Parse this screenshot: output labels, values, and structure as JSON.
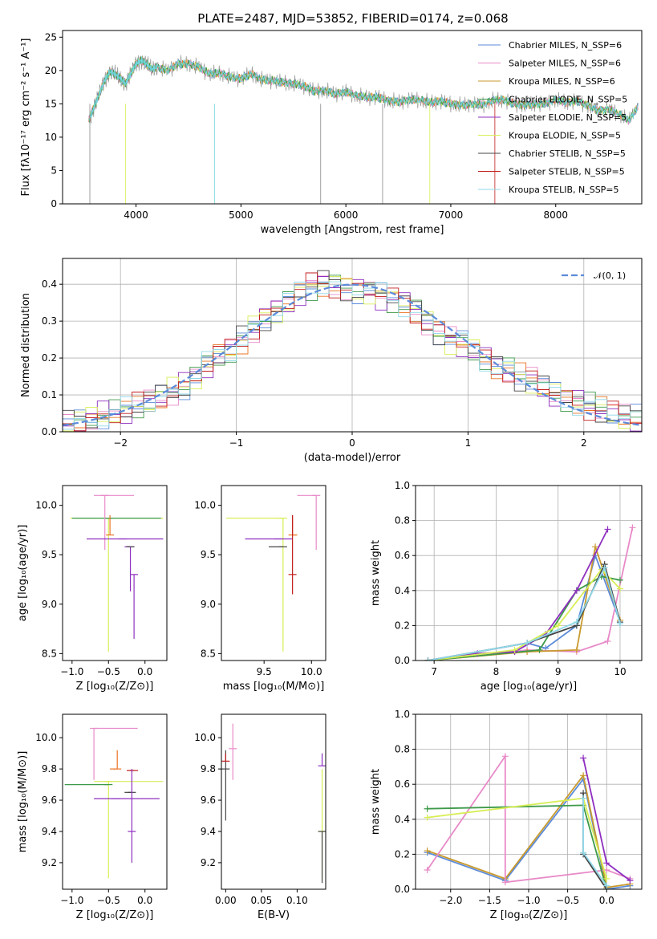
{
  "title": "PLATE=2487, MJD=53852, FIBERID=0174, z=0.068",
  "palette": {
    "chabrier_miles": "#5b8bd9",
    "salpeter_miles": "#e88ac8",
    "kroupa_miles": "#c99a2e",
    "chabrier_elodie": "#3e9a4a",
    "salpeter_elodie": "#8e2fbf",
    "kroupa_elodie": "#d8ee55",
    "chabrier_stelib": "#444444",
    "salpeter_stelib": "#c11c1c",
    "kroupa_stelib": "#8fd8e8",
    "cyan": "#6fd6dc",
    "orange": "#ea7424",
    "gray": "#888888",
    "normal": "#5b8bd9"
  },
  "chart_data": [
    {
      "id": "spectrum",
      "type": "line",
      "xlabel": "wavelength [Angstrom, rest frame]",
      "ylabel": "Flux [fλ10⁻¹⁷ erg cm⁻² s⁻¹ A⁻¹]",
      "xlim": [
        3300,
        8820
      ],
      "ylim": [
        0,
        26
      ],
      "xticks": [
        4000,
        5000,
        6000,
        7000,
        8000
      ],
      "yticks": [
        0,
        5,
        10,
        15,
        20,
        25
      ],
      "legend_position": "top-right",
      "legend": [
        {
          "name": "Chabrier MILES, N_SSP=6",
          "color_key": "chabrier_miles"
        },
        {
          "name": "Salpeter MILES, N_SSP=6",
          "color_key": "salpeter_miles"
        },
        {
          "name": "Kroupa MILES, N_SSP=6",
          "color_key": "kroupa_miles"
        },
        {
          "name": "Chabrier ELODIE, N_SSP=5",
          "color_key": "chabrier_elodie"
        },
        {
          "name": "Salpeter ELODIE, N_SSP=5",
          "color_key": "salpeter_elodie"
        },
        {
          "name": "Kroupa ELODIE, N_SSP=5",
          "color_key": "kroupa_elodie"
        },
        {
          "name": "Chabrier STELIB, N_SSP=5",
          "color_key": "chabrier_stelib"
        },
        {
          "name": "Salpeter STELIB, N_SSP=5",
          "color_key": "salpeter_stelib"
        },
        {
          "name": "Kroupa STELIB, N_SSP=5",
          "color_key": "kroupa_stelib"
        }
      ],
      "data_series": {
        "x": [
          3550,
          3600,
          3650,
          3700,
          3750,
          3800,
          3850,
          3900,
          3950,
          4000,
          4050,
          4100,
          4150,
          4200,
          4300,
          4400,
          4500,
          4600,
          4700,
          4800,
          4900,
          5000,
          5100,
          5200,
          5300,
          5400,
          5500,
          5600,
          5700,
          5800,
          5900,
          6000,
          6100,
          6200,
          6300,
          6400,
          6500,
          6600,
          6700,
          6800,
          6900,
          7000,
          7100,
          7200,
          7300,
          7400,
          7500,
          7600,
          7700,
          7800,
          7900,
          8000,
          8100,
          8200,
          8300,
          8400,
          8500,
          8600,
          8700,
          8790
        ],
        "y": [
          12.5,
          14.5,
          16.5,
          18.5,
          19.8,
          19.5,
          18.8,
          18.0,
          19.5,
          21.0,
          21.5,
          21.0,
          20.2,
          20.5,
          20.0,
          21.0,
          21.0,
          20.5,
          19.5,
          19.6,
          19.0,
          18.8,
          19.5,
          18.6,
          18.5,
          18.2,
          18.0,
          17.7,
          16.9,
          17.0,
          16.5,
          16.8,
          16.2,
          16.0,
          16.0,
          15.5,
          15.3,
          15.6,
          15.6,
          15.2,
          15.4,
          15.0,
          14.8,
          15.0,
          14.8,
          15.5,
          15.6,
          15.0,
          14.8,
          15.0,
          15.0,
          15.6,
          15.2,
          15.4,
          14.8,
          14.0,
          14.2,
          13.5,
          12.5,
          14.8
        ]
      }
    },
    {
      "id": "residuals",
      "type": "line",
      "xlabel": "(data-model)/error",
      "ylabel": "Normed distribution",
      "xlim": [
        -2.5,
        2.5
      ],
      "ylim": [
        0,
        0.47
      ],
      "xticks": [
        -2,
        -1,
        0,
        1,
        2
      ],
      "yticks": [
        0.0,
        0.1,
        0.2,
        0.3,
        0.4
      ],
      "grid": true,
      "legend_position": "top-right",
      "legend": [
        {
          "name": "𝒩(0, 1)",
          "color_key": "normal"
        }
      ],
      "bin_centers": [
        -2.45,
        -2.35,
        -2.25,
        -2.15,
        -2.05,
        -1.95,
        -1.85,
        -1.75,
        -1.65,
        -1.55,
        -1.45,
        -1.35,
        -1.25,
        -1.15,
        -1.05,
        -0.95,
        -0.85,
        -0.75,
        -0.65,
        -0.55,
        -0.45,
        -0.35,
        -0.25,
        -0.15,
        -0.05,
        0.05,
        0.15,
        0.25,
        0.35,
        0.45,
        0.55,
        0.65,
        0.75,
        0.85,
        0.95,
        1.05,
        1.15,
        1.25,
        1.35,
        1.45,
        1.55,
        1.65,
        1.75,
        1.85,
        1.95,
        2.05,
        2.15,
        2.25,
        2.35,
        2.45
      ],
      "hist_mean": [
        0.02,
        0.025,
        0.035,
        0.045,
        0.05,
        0.055,
        0.07,
        0.08,
        0.095,
        0.11,
        0.125,
        0.15,
        0.18,
        0.205,
        0.22,
        0.25,
        0.28,
        0.31,
        0.33,
        0.35,
        0.375,
        0.395,
        0.405,
        0.4,
        0.39,
        0.385,
        0.38,
        0.37,
        0.36,
        0.35,
        0.33,
        0.3,
        0.27,
        0.25,
        0.24,
        0.22,
        0.2,
        0.18,
        0.17,
        0.15,
        0.14,
        0.12,
        0.1,
        0.09,
        0.08,
        0.07,
        0.06,
        0.05,
        0.04,
        0.035
      ]
    },
    {
      "id": "age-vs-z",
      "type": "scatter",
      "xlabel": "Z [log₁₀(Z/Z⊙)]",
      "ylabel": "age  [log₁₀(age/yr)]",
      "xlim": [
        -1.13,
        0.3
      ],
      "ylim": [
        8.43,
        10.2
      ],
      "xticks": [
        -1.0,
        -0.5,
        0.0
      ],
      "yticks": [
        8.5,
        9.0,
        9.5,
        10.0
      ],
      "points": [
        {
          "x": -0.5,
          "y": 9.87,
          "xerr": [
            0.52,
            0.75
          ],
          "yerr": [
            1.35,
            0.0
          ],
          "color_key": "kroupa_elodie"
        },
        {
          "x": -0.5,
          "y": 9.87,
          "xerr": [
            0.5,
            0.72
          ],
          "yerr": [
            0.0,
            0.0
          ],
          "color_key": "chabrier_elodie"
        },
        {
          "x": -0.48,
          "y": 9.7,
          "xerr": [
            0.0,
            0.0
          ],
          "yerr": [
            0.0,
            0.2
          ],
          "color_key": "orange"
        },
        {
          "x": -0.55,
          "y": 10.1,
          "xerr": [
            0.15,
            0.4
          ],
          "yerr": [
            0.55,
            0.0
          ],
          "color_key": "salpeter_miles"
        },
        {
          "x": -0.3,
          "y": 9.66,
          "xerr": [
            0.5,
            0.55
          ],
          "yerr": [
            0.0,
            0.0
          ],
          "color_key": "salpeter_elodie"
        },
        {
          "x": -0.2,
          "y": 9.58,
          "xerr": [
            0.08,
            0.0
          ],
          "yerr": [
            0.45,
            0.0
          ],
          "color_key": "salpeter_elodie"
        },
        {
          "x": -0.2,
          "y": 9.58,
          "xerr": [
            0.05,
            0.0
          ],
          "yerr": [
            0.0,
            0.0
          ],
          "color_key": "chabrier_stelib"
        },
        {
          "x": -0.15,
          "y": 9.3,
          "xerr": [
            0.0,
            0.0
          ],
          "yerr": [
            0.65,
            0.0
          ],
          "color_key": "salpeter_elodie"
        }
      ]
    },
    {
      "id": "age-vs-mass",
      "type": "scatter",
      "xlabel": "mass [log₁₀(M/M⊙)]",
      "ylabel": "",
      "xlim": [
        9.05,
        10.15
      ],
      "ylim": [
        8.43,
        10.2
      ],
      "xticks": [
        9.5,
        10.0
      ],
      "yticks": [
        8.5,
        9.0,
        9.5,
        10.0
      ],
      "points": [
        {
          "x": 9.7,
          "y": 9.87,
          "xerr": [
            0.6,
            0.0
          ],
          "yerr": [
            1.35,
            0.0
          ],
          "color_key": "kroupa_elodie"
        },
        {
          "x": 9.65,
          "y": 9.66,
          "xerr": [
            0.35,
            0.15
          ],
          "yerr": [
            0.0,
            0.0
          ],
          "color_key": "salpeter_elodie"
        },
        {
          "x": 9.8,
          "y": 9.7,
          "xerr": [
            0.0,
            0.05
          ],
          "yerr": [
            0.0,
            0.2
          ],
          "color_key": "orange"
        },
        {
          "x": 10.05,
          "y": 10.1,
          "xerr": [
            0.2,
            0.0
          ],
          "yerr": [
            0.55,
            0.0
          ],
          "color_key": "salpeter_miles"
        },
        {
          "x": 9.7,
          "y": 9.58,
          "xerr": [
            0.15,
            0.0
          ],
          "yerr": [
            0.0,
            0.0
          ],
          "color_key": "chabrier_stelib"
        },
        {
          "x": 9.8,
          "y": 9.3,
          "xerr": [
            0.0,
            0.0
          ],
          "yerr": [
            0.2,
            0.6
          ],
          "color_key": "salpeter_stelib"
        }
      ]
    },
    {
      "id": "mass-weight-vs-age",
      "type": "line",
      "xlabel": "age  [log₁₀(age/yr)]",
      "ylabel": "mass weight",
      "xlim": [
        6.7,
        10.35
      ],
      "ylim": [
        0,
        1.0
      ],
      "xticks": [
        7,
        8,
        9,
        10
      ],
      "yticks": [
        0.0,
        0.2,
        0.4,
        0.6,
        0.8,
        1.0
      ],
      "grid": true,
      "series": [
        {
          "color_key": "chabrier_miles",
          "x": [
            6.9,
            8.5,
            8.8,
            9.3,
            9.6,
            10.0
          ],
          "y": [
            0.0,
            0.1,
            0.07,
            0.2,
            0.6,
            0.22
          ]
        },
        {
          "color_key": "salpeter_miles",
          "x": [
            6.9,
            8.5,
            9.3,
            9.8,
            10.2
          ],
          "y": [
            0.0,
            0.06,
            0.05,
            0.11,
            0.76
          ]
        },
        {
          "color_key": "kroupa_miles",
          "x": [
            6.9,
            8.5,
            9.3,
            9.6,
            10.0
          ],
          "y": [
            0.0,
            0.05,
            0.06,
            0.65,
            0.23
          ]
        },
        {
          "color_key": "chabrier_elodie",
          "x": [
            6.9,
            8.7,
            9.3,
            9.7,
            10.0
          ],
          "y": [
            0.0,
            0.06,
            0.4,
            0.48,
            0.46
          ]
        },
        {
          "color_key": "salpeter_elodie",
          "x": [
            6.9,
            7.7,
            8.3,
            8.8,
            9.3,
            9.8
          ],
          "y": [
            0.0,
            0.04,
            0.05,
            0.15,
            0.4,
            0.75
          ]
        },
        {
          "color_key": "kroupa_elodie",
          "x": [
            6.9,
            8.3,
            9.0,
            9.7,
            10.0
          ],
          "y": [
            0.0,
            0.06,
            0.2,
            0.52,
            0.41
          ]
        },
        {
          "color_key": "chabrier_stelib",
          "x": [
            6.9,
            8.5,
            9.3,
            9.75,
            10.0
          ],
          "y": [
            0.0,
            0.1,
            0.2,
            0.55,
            0.22
          ]
        },
        {
          "color_key": "kroupa_stelib",
          "x": [
            6.9,
            8.5,
            9.3,
            9.75,
            10.0
          ],
          "y": [
            0.0,
            0.1,
            0.22,
            0.53,
            0.21
          ]
        }
      ]
    },
    {
      "id": "mass-vs-z",
      "type": "scatter",
      "xlabel": "Z [log₁₀(Z/Z⊙)]",
      "ylabel": "mass [log₁₀(M/M⊙)]",
      "xlim": [
        -1.13,
        0.3
      ],
      "ylim": [
        9.03,
        10.15
      ],
      "xticks": [
        -1.0,
        -0.5,
        0.0
      ],
      "yticks": [
        9.2,
        9.4,
        9.6,
        9.8,
        10.0
      ],
      "points": [
        {
          "x": -0.5,
          "y": 9.72,
          "xerr": [
            0.2,
            0.75
          ],
          "yerr": [
            0.62,
            0.0
          ],
          "color_key": "kroupa_elodie"
        },
        {
          "x": -0.5,
          "y": 9.7,
          "xerr": [
            0.6,
            0.0
          ],
          "yerr": [
            0.0,
            0.0
          ],
          "color_key": "chabrier_elodie"
        },
        {
          "x": -0.38,
          "y": 9.8,
          "xerr": [
            0.1,
            0.0
          ],
          "yerr": [
            0.0,
            0.12
          ],
          "color_key": "orange"
        },
        {
          "x": -0.7,
          "y": 10.06,
          "xerr": [
            0.0,
            0.6
          ],
          "yerr": [
            0.33,
            0.0
          ],
          "color_key": "salpeter_miles"
        },
        {
          "x": -0.4,
          "y": 9.61,
          "xerr": [
            0.3,
            0.6
          ],
          "yerr": [
            0.0,
            0.0
          ],
          "color_key": "salpeter_elodie"
        },
        {
          "x": -0.15,
          "y": 9.79,
          "xerr": [
            0.1,
            0.0
          ],
          "yerr": [
            0.0,
            0.0
          ],
          "color_key": "salpeter_stelib"
        },
        {
          "x": -0.18,
          "y": 9.65,
          "xerr": [
            0.1,
            0.0
          ],
          "yerr": [
            0.0,
            0.0
          ],
          "color_key": "chabrier_stelib"
        },
        {
          "x": -0.18,
          "y": 9.4,
          "xerr": [
            0.0,
            0.0
          ],
          "yerr": [
            0.2,
            0.4
          ],
          "color_key": "salpeter_elodie"
        }
      ]
    },
    {
      "id": "mass-vs-ebv",
      "type": "scatter",
      "xlabel": "E(B-V)",
      "ylabel": "",
      "xlim": [
        -0.006,
        0.14
      ],
      "ylim": [
        9.03,
        10.15
      ],
      "xticks": [
        0.0,
        0.05,
        0.1
      ],
      "yticks": [
        9.2,
        9.4,
        9.6,
        9.8,
        10.0
      ],
      "points": [
        {
          "x": 0.0,
          "y": 9.8,
          "xerr": [
            0.0,
            0.0
          ],
          "yerr": [
            0.33,
            0.12
          ],
          "color_key": "chabrier_stelib"
        },
        {
          "x": 0.0,
          "y": 9.85,
          "xerr": [
            0.0,
            0.0
          ],
          "yerr": [
            0.0,
            0.05
          ],
          "color_key": "salpeter_stelib"
        },
        {
          "x": 0.01,
          "y": 9.93,
          "xerr": [
            0.0,
            0.0
          ],
          "yerr": [
            0.2,
            0.16
          ],
          "color_key": "salpeter_miles"
        },
        {
          "x": 0.135,
          "y": 9.82,
          "xerr": [
            0.0,
            0.0
          ],
          "yerr": [
            0.0,
            0.08
          ],
          "color_key": "salpeter_elodie"
        },
        {
          "x": 0.135,
          "y": 9.4,
          "xerr": [
            0.0,
            0.0
          ],
          "yerr": [
            0.3,
            0.4
          ],
          "color_key": "kroupa_elodie"
        },
        {
          "x": 0.135,
          "y": 9.4,
          "xerr": [
            0.0,
            0.0
          ],
          "yerr": [
            0.33,
            0.0
          ],
          "color_key": "chabrier_stelib"
        }
      ]
    },
    {
      "id": "mass-weight-vs-z",
      "type": "line",
      "xlabel": "Z [log₁₀(Z/Z⊙)]",
      "ylabel": "mass weight",
      "xlim": [
        -2.45,
        0.45
      ],
      "ylim": [
        0,
        1.0
      ],
      "xticks": [
        -2.0,
        -1.5,
        -1.0,
        -0.5,
        0.0
      ],
      "yticks": [
        0.0,
        0.2,
        0.4,
        0.6,
        0.8,
        1.0
      ],
      "grid": true,
      "series": [
        {
          "color_key": "chabrier_miles",
          "x": [
            -2.3,
            -1.3,
            -0.3,
            0.0,
            0.3
          ],
          "y": [
            0.21,
            0.05,
            0.63,
            0.0,
            0.02
          ]
        },
        {
          "color_key": "kroupa_miles",
          "x": [
            -2.3,
            -1.3,
            -0.3,
            0.0,
            0.3
          ],
          "y": [
            0.22,
            0.06,
            0.65,
            0.01,
            0.03
          ]
        },
        {
          "color_key": "salpeter_miles",
          "x": [
            -2.3,
            -1.3,
            -1.3,
            0.0,
            0.3
          ],
          "y": [
            0.11,
            0.76,
            0.04,
            0.11,
            0.06
          ]
        },
        {
          "color_key": "chabrier_elodie",
          "x": [
            -2.3,
            -0.3,
            0.0
          ],
          "y": [
            0.46,
            0.48,
            0.0
          ]
        },
        {
          "color_key": "kroupa_elodie",
          "x": [
            -2.3,
            -0.3,
            0.0
          ],
          "y": [
            0.41,
            0.52,
            0.06
          ]
        },
        {
          "color_key": "salpeter_elodie",
          "x": [
            -0.3,
            0.0,
            0.3
          ],
          "y": [
            0.75,
            0.15,
            0.05
          ]
        },
        {
          "color_key": "chabrier_stelib",
          "x": [
            -0.3,
            -0.3,
            0.0
          ],
          "y": [
            0.55,
            0.2,
            0.0
          ]
        },
        {
          "color_key": "kroupa_stelib",
          "x": [
            -0.3,
            -0.3,
            0.0
          ],
          "y": [
            0.52,
            0.21,
            0.02
          ]
        }
      ]
    }
  ]
}
